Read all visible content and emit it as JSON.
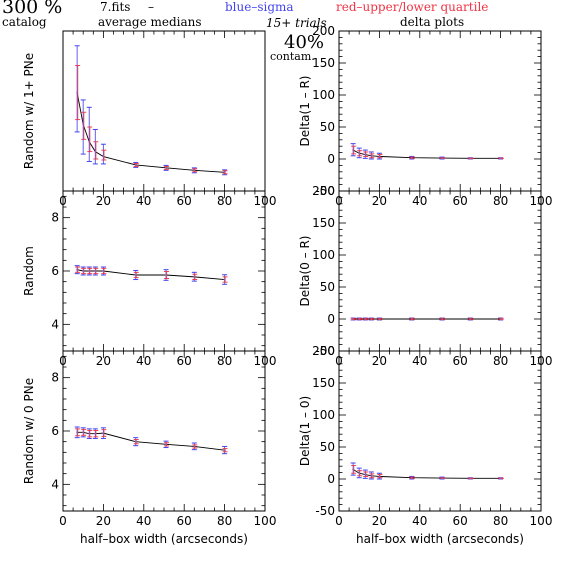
{
  "header": {
    "scale_label": "300 %",
    "catalog_label": "catalog",
    "file_label": "7.fits",
    "dash": "–",
    "medians_label": "average medians",
    "blue_label": "blue–sigma",
    "red_label": "red–upper/lower quartile",
    "trials_label": "15+ trials",
    "delta_label": "delta plots",
    "contam_value": "40%",
    "contam_label": "contam."
  },
  "colors": {
    "blue": "#4444ee",
    "red": "#ee3344",
    "errorbar": "#9a5aa8",
    "line": "#000000"
  },
  "chart_data": [
    {
      "type": "line",
      "ylabel": "Random w/ 1+ PNe",
      "xlabel": "",
      "xlim": [
        0,
        100
      ],
      "ylim": [
        2.5,
        35
      ],
      "xticks": [
        0,
        20,
        40,
        60,
        80,
        100
      ],
      "yticks": [],
      "x": [
        7,
        10,
        13,
        16,
        20,
        36,
        51,
        65,
        80
      ],
      "y": [
        22.5,
        16,
        12.5,
        10.5,
        9.5,
        7.8,
        7.2,
        6.7,
        6.3
      ],
      "sigma_lo": [
        14.5,
        10,
        8.5,
        8,
        8,
        7.3,
        6.7,
        6.2,
        5.8
      ],
      "sigma_hi": [
        32,
        21,
        19.5,
        15,
        12,
        8.3,
        7.7,
        7.2,
        6.8
      ],
      "quart_lo": [
        17,
        13,
        10.5,
        9,
        8.8,
        7.5,
        6.9,
        6.4,
        6.0
      ],
      "quart_hi": [
        28,
        18.5,
        15.5,
        12.5,
        10.8,
        8.1,
        7.5,
        7.0,
        6.6
      ]
    },
    {
      "type": "line",
      "ylabel": "Random",
      "xlabel": "",
      "xlim": [
        0,
        100
      ],
      "ylim": [
        3,
        9
      ],
      "xticks": [
        0,
        20,
        40,
        60,
        80,
        100
      ],
      "yticks": [
        4,
        6,
        8
      ],
      "x": [
        7,
        10,
        13,
        16,
        20,
        36,
        51,
        65,
        80
      ],
      "y": [
        6.05,
        6.0,
        6.0,
        6.0,
        6.0,
        5.85,
        5.85,
        5.78,
        5.68
      ],
      "sigma_lo": [
        5.9,
        5.85,
        5.85,
        5.85,
        5.85,
        5.68,
        5.65,
        5.62,
        5.5
      ],
      "sigma_hi": [
        6.2,
        6.15,
        6.15,
        6.15,
        6.15,
        6.02,
        6.05,
        5.95,
        5.86
      ],
      "quart_lo": [
        5.95,
        5.9,
        5.9,
        5.9,
        5.9,
        5.75,
        5.72,
        5.68,
        5.58
      ],
      "quart_hi": [
        6.15,
        6.1,
        6.1,
        6.1,
        6.1,
        5.95,
        5.98,
        5.88,
        5.78
      ]
    },
    {
      "type": "line",
      "ylabel": "Random w/ 0 PNe",
      "xlabel": "half–box width (arcseconds)",
      "xlim": [
        0,
        100
      ],
      "ylim": [
        3,
        9
      ],
      "xticks": [
        0,
        20,
        40,
        60,
        80,
        100
      ],
      "yticks": [
        4,
        6,
        8
      ],
      "x": [
        7,
        10,
        13,
        16,
        20,
        36,
        51,
        65,
        80
      ],
      "y": [
        5.95,
        5.95,
        5.9,
        5.9,
        5.92,
        5.6,
        5.5,
        5.42,
        5.28
      ],
      "sigma_lo": [
        5.75,
        5.78,
        5.72,
        5.72,
        5.72,
        5.45,
        5.38,
        5.3,
        5.15
      ],
      "sigma_hi": [
        6.15,
        6.12,
        6.08,
        6.08,
        6.12,
        5.75,
        5.62,
        5.55,
        5.42
      ],
      "quart_lo": [
        5.82,
        5.84,
        5.78,
        5.78,
        5.8,
        5.52,
        5.44,
        5.36,
        5.22
      ],
      "quart_hi": [
        6.08,
        6.06,
        6.02,
        6.02,
        6.05,
        5.68,
        5.56,
        5.48,
        5.34
      ]
    },
    {
      "type": "line",
      "ylabel": "Delta(1 – R)",
      "xlabel": "",
      "xlim": [
        0,
        100
      ],
      "ylim": [
        -50,
        200
      ],
      "xticks": [
        0,
        20,
        40,
        60,
        80,
        100
      ],
      "yticks": [
        -50,
        0,
        50,
        100,
        150,
        200
      ],
      "x": [
        7,
        10,
        13,
        16,
        20,
        36,
        51,
        65,
        80
      ],
      "y": [
        14,
        9,
        7,
        5,
        4,
        2,
        1.5,
        1,
        1
      ],
      "sigma_lo": [
        5,
        2,
        1,
        0,
        0,
        0,
        0,
        0,
        0
      ],
      "sigma_hi": [
        24,
        17,
        14,
        11,
        9,
        4,
        3,
        2,
        2
      ],
      "quart_lo": [
        8,
        5,
        4,
        2,
        2,
        1,
        1,
        0.5,
        0.5
      ],
      "quart_hi": [
        20,
        13,
        11,
        8,
        7,
        3,
        2,
        1.5,
        1.5
      ]
    },
    {
      "type": "line",
      "ylabel": "Delta(0 – R)",
      "xlabel": "",
      "xlim": [
        0,
        100
      ],
      "ylim": [
        -50,
        200
      ],
      "xticks": [
        0,
        20,
        40,
        60,
        80,
        100
      ],
      "yticks": [
        -50,
        0,
        50,
        100,
        150,
        200
      ],
      "x": [
        7,
        10,
        13,
        16,
        20,
        36,
        51,
        65,
        80
      ],
      "y": [
        0,
        0,
        0,
        0,
        0,
        0,
        0,
        0,
        0
      ],
      "sigma_lo": [
        -1.5,
        -1.5,
        -1.5,
        -1.5,
        -1.5,
        -1.5,
        -1.5,
        -1.5,
        -1.5
      ],
      "sigma_hi": [
        1.5,
        1.5,
        1.5,
        1.5,
        1.5,
        1.5,
        1.5,
        1.5,
        1.5
      ],
      "quart_lo": [
        -1,
        -1,
        -1,
        -1,
        -1,
        -1,
        -1,
        -1,
        -1
      ],
      "quart_hi": [
        1,
        1,
        1,
        1,
        1,
        1,
        1,
        1,
        1
      ]
    },
    {
      "type": "line",
      "ylabel": "Delta(1 – 0)",
      "xlabel": "half–box width (arcseconds)",
      "xlim": [
        0,
        100
      ],
      "ylim": [
        -50,
        200
      ],
      "xticks": [
        0,
        20,
        40,
        60,
        80,
        100
      ],
      "yticks": [
        -50,
        0,
        50,
        100,
        150,
        200
      ],
      "x": [
        7,
        10,
        13,
        16,
        20,
        36,
        51,
        65,
        80
      ],
      "y": [
        15,
        9,
        7,
        5,
        4,
        2,
        1.5,
        1,
        1
      ],
      "sigma_lo": [
        6,
        2,
        1,
        0,
        0,
        0,
        0,
        0,
        0
      ],
      "sigma_hi": [
        25,
        17,
        14,
        11,
        9,
        4,
        3,
        2,
        2
      ],
      "quart_lo": [
        9,
        5,
        4,
        2,
        2,
        1,
        1,
        0.5,
        0.5
      ],
      "quart_hi": [
        21,
        13,
        11,
        8,
        7,
        3,
        2,
        1.5,
        1.5
      ]
    }
  ]
}
